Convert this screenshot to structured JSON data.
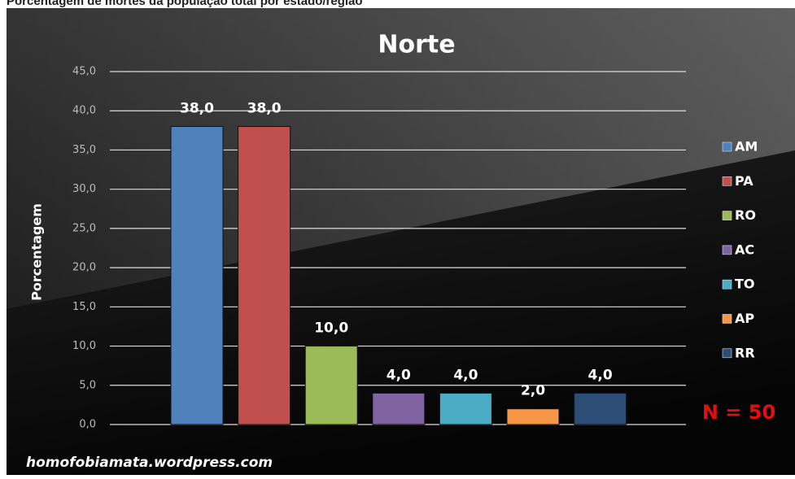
{
  "caption": "Porcentagem de mortes da população total por estado/região",
  "chart_data": {
    "type": "bar",
    "title": "Norte",
    "y_label": "Porcentagem",
    "categories": [
      "AM",
      "PA",
      "RO",
      "AC",
      "TO",
      "AP",
      "RR"
    ],
    "values": [
      38,
      38,
      10,
      4,
      4,
      2,
      4
    ],
    "value_labels": [
      "38,0",
      "38,0",
      "10,0",
      "4,0",
      "4,0",
      "2,0",
      "4,0"
    ],
    "colors": [
      "#4f81bd",
      "#c0504d",
      "#9bbb59",
      "#8064a2",
      "#4bacc6",
      "#f79646",
      "#2c4d75"
    ],
    "ylim": [
      0,
      45
    ],
    "yticks": [
      {
        "value": 0,
        "label": "0,0"
      },
      {
        "value": 5,
        "label": "5,0"
      },
      {
        "value": 10,
        "label": "10,0"
      },
      {
        "value": 15,
        "label": "15,0"
      },
      {
        "value": 20,
        "label": "20,0"
      },
      {
        "value": 25,
        "label": "25,0"
      },
      {
        "value": 30,
        "label": "30,0"
      },
      {
        "value": 35,
        "label": "35,0"
      },
      {
        "value": 40,
        "label": "40,0"
      },
      {
        "value": 45,
        "label": "45,0"
      }
    ],
    "grid": true,
    "legend": "right",
    "annotation": "N = 50",
    "watermark": "homofobiamata.wordpress.com"
  }
}
